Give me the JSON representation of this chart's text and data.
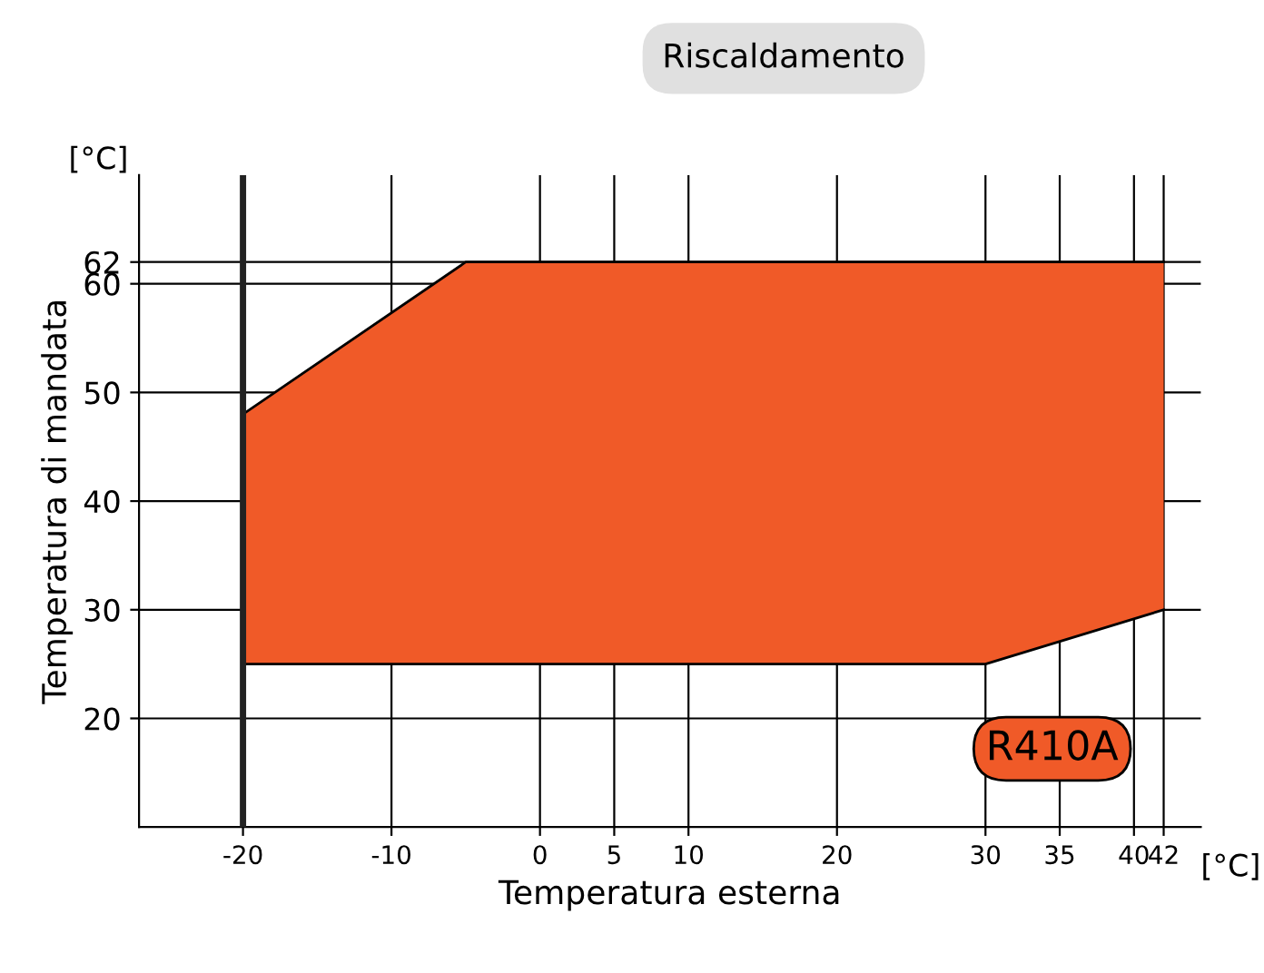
{
  "chart_data": {
    "type": "area",
    "title": "Riscaldamento",
    "xlabel": "Temperatura esterna",
    "ylabel": "Temperatura di mandata",
    "series": [
      {
        "type": "line",
        "color": "#000000",
        "x": [
          -20,
          -5,
          30,
          42
        ],
        "values": [
          25,
          25,
          25,
          30
        ]
      },
      {
        "color": "#f05a28",
        "x": [
          -20,
          -5,
          30,
          42
        ],
        "values": [
          48,
          62,
          62,
          62
        ]
      }
    ],
    "xlim": [
      -27,
      44.5
    ],
    "xticks": [
      -20,
      -10,
      0,
      5,
      10,
      20,
      30,
      35,
      40,
      42
    ],
    "ylim": [
      10,
      70
    ],
    "yticks": [
      20,
      30,
      40,
      50,
      60,
      62
    ],
    "ref_lines": [
      {
        "axis": "x",
        "value": -20,
        "color": "#222222"
      }
    ],
    "annotations": [
      "[°C]",
      "[°C]",
      "R410A"
    ],
    "grid": true,
    "legend": false
  }
}
